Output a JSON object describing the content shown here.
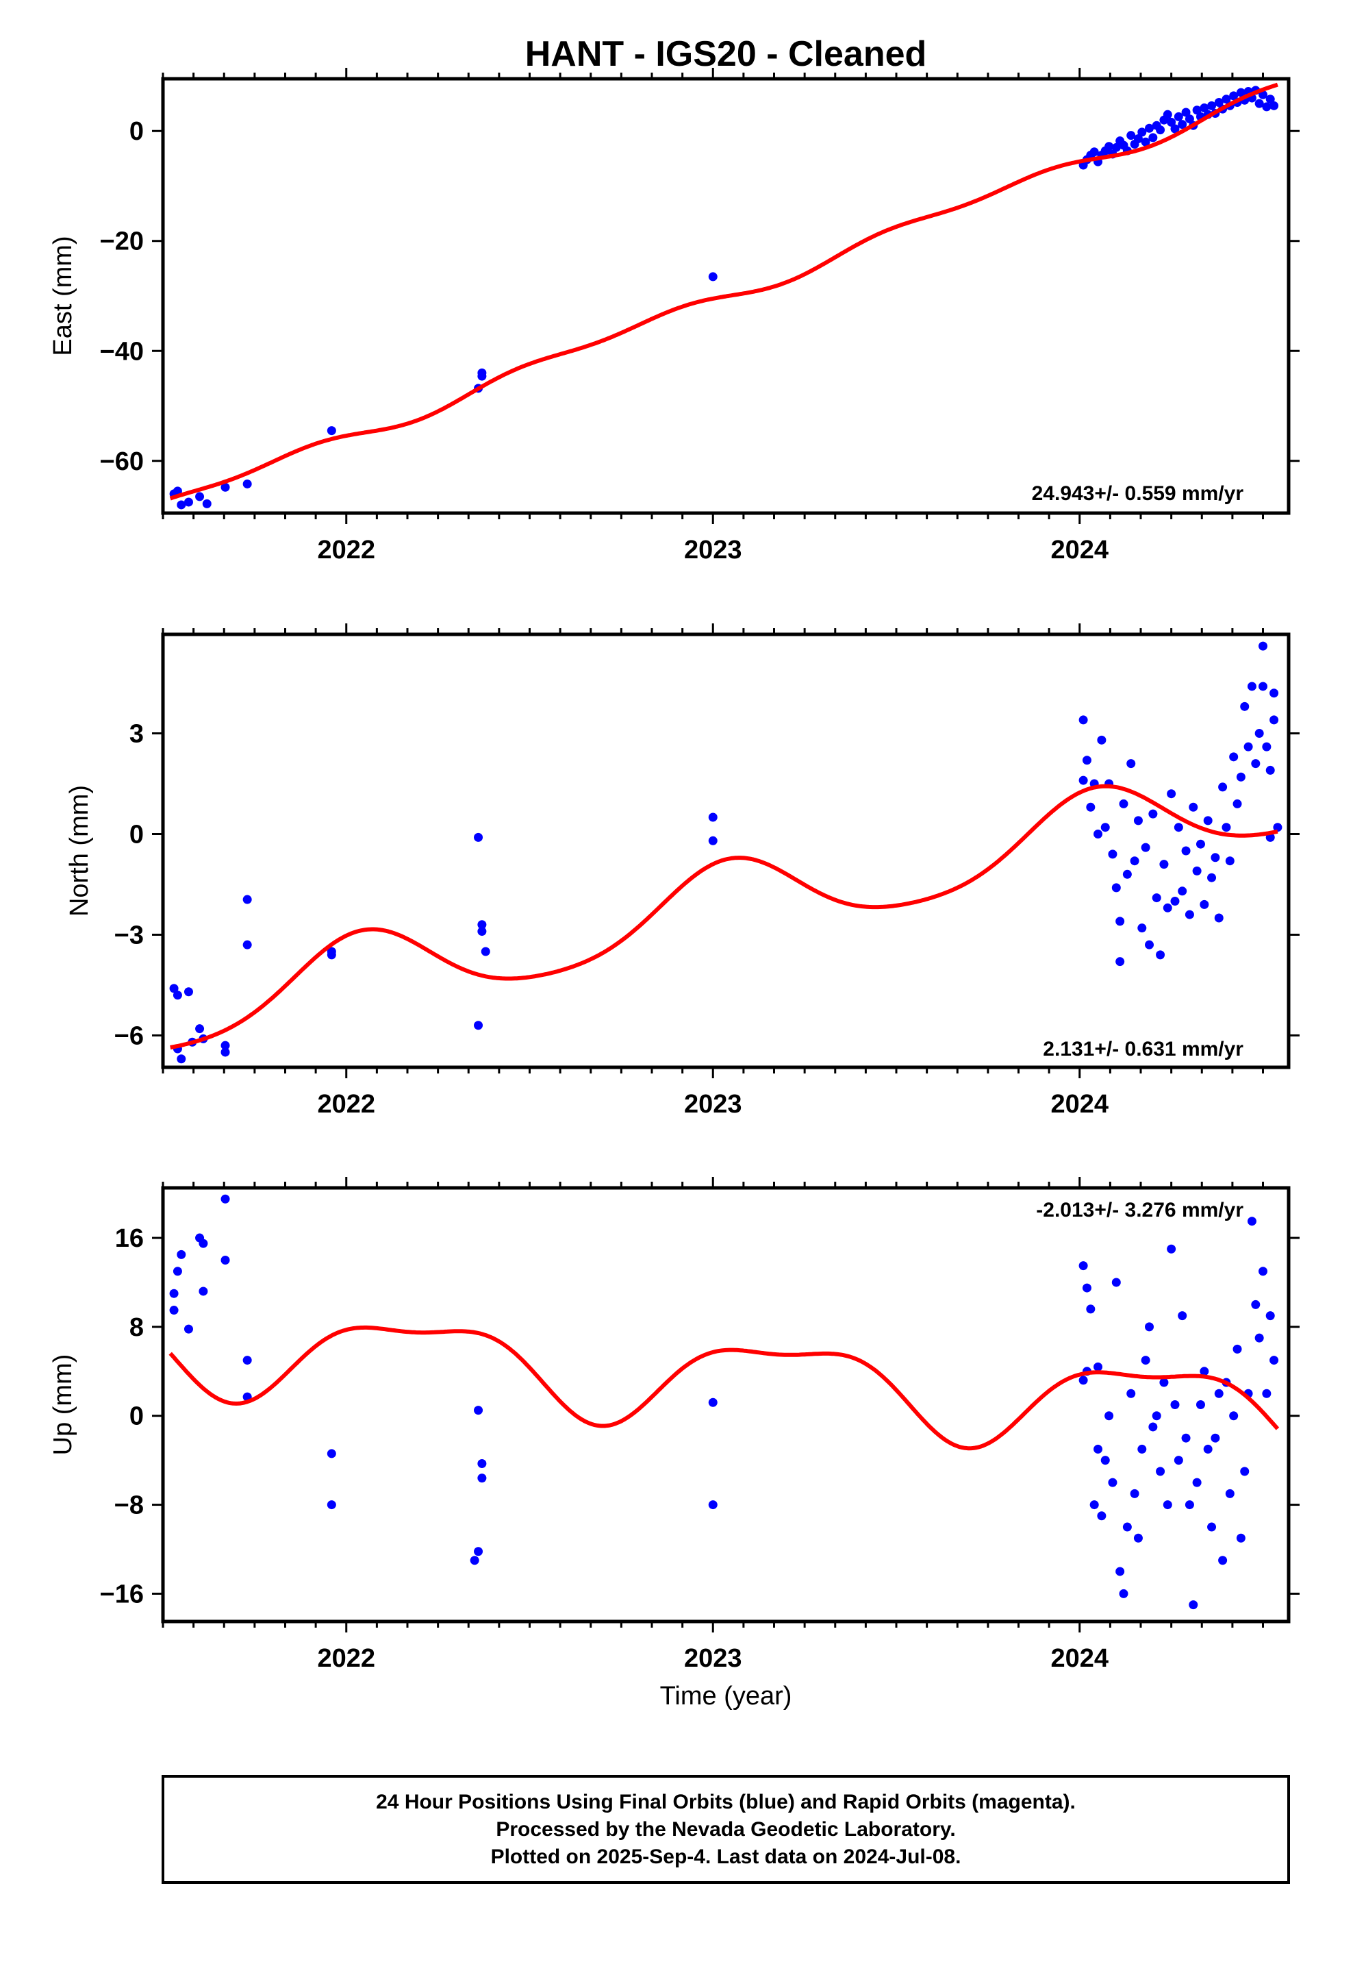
{
  "title": "HANT  - IGS20 - Cleaned",
  "xlabel": "Time (year)",
  "footer": [
    "24 Hour Positions Using Final Orbits (blue) and Rapid Orbits (magenta).",
    "Processed by the Nevada Geodetic Laboratory.",
    "Plotted on 2025-Sep-4. Last data on 2024-Jul-08."
  ],
  "colors": {
    "points": "#0000ff",
    "model": "#ff0000",
    "axes": "#000000"
  },
  "chart_data": [
    {
      "type": "scatter",
      "ylabel": "East (mm)",
      "rate": "24.943+/- 0.559 mm/yr",
      "xlim": [
        2021.5,
        2024.57
      ],
      "ylim": [
        -69.5,
        9.5
      ],
      "yticks": [
        0,
        -20,
        -40,
        -60
      ],
      "xticks": [
        2022,
        2023,
        2024
      ],
      "series": [
        {
          "points": [
            [
              2021.53,
              -66
            ],
            [
              2021.54,
              -65.5
            ],
            [
              2021.55,
              -68
            ],
            [
              2021.57,
              -67.5
            ],
            [
              2021.6,
              -66.5
            ],
            [
              2021.62,
              -67.8
            ],
            [
              2021.67,
              -64.8
            ],
            [
              2021.73,
              -64.2
            ],
            [
              2021.96,
              -54.5
            ],
            [
              2022.36,
              -46.8
            ],
            [
              2022.37,
              -44
            ],
            [
              2022.37,
              -44.6
            ],
            [
              2023.0,
              -26.5
            ],
            [
              2024.01,
              -6.2
            ],
            [
              2024.02,
              -5.2
            ],
            [
              2024.03,
              -4.4
            ],
            [
              2024.04,
              -3.8
            ],
            [
              2024.05,
              -5.6
            ],
            [
              2024.06,
              -4.4
            ],
            [
              2024.07,
              -3.6
            ],
            [
              2024.08,
              -2.8
            ],
            [
              2024.09,
              -4.2
            ],
            [
              2024.1,
              -3.0
            ],
            [
              2024.11,
              -1.8
            ],
            [
              2024.12,
              -2.6
            ],
            [
              2024.13,
              -3.6
            ],
            [
              2024.14,
              -0.8
            ],
            [
              2024.15,
              -2.4
            ],
            [
              2024.16,
              -1.4
            ],
            [
              2024.17,
              -0.2
            ],
            [
              2024.18,
              -2.0
            ],
            [
              2024.19,
              0.5
            ],
            [
              2024.2,
              -1.2
            ],
            [
              2024.21,
              1.0
            ],
            [
              2024.22,
              0.2
            ],
            [
              2024.23,
              2.0
            ],
            [
              2024.24,
              3.0
            ],
            [
              2024.25,
              1.6
            ],
            [
              2024.26,
              0.4
            ],
            [
              2024.27,
              2.6
            ],
            [
              2024.28,
              1.2
            ],
            [
              2024.29,
              3.4
            ],
            [
              2024.3,
              2.2
            ],
            [
              2024.31,
              1.0
            ],
            [
              2024.32,
              3.8
            ],
            [
              2024.33,
              2.6
            ],
            [
              2024.34,
              4.2
            ],
            [
              2024.35,
              3.0
            ],
            [
              2024.36,
              4.6
            ],
            [
              2024.37,
              3.2
            ],
            [
              2024.38,
              5.2
            ],
            [
              2024.39,
              4.0
            ],
            [
              2024.4,
              5.8
            ],
            [
              2024.41,
              4.6
            ],
            [
              2024.42,
              6.4
            ],
            [
              2024.43,
              5.2
            ],
            [
              2024.44,
              7.0
            ],
            [
              2024.45,
              5.6
            ],
            [
              2024.46,
              7.2
            ],
            [
              2024.47,
              6.0
            ],
            [
              2024.48,
              7.4
            ],
            [
              2024.49,
              5.0
            ],
            [
              2024.5,
              6.6
            ],
            [
              2024.51,
              4.4
            ],
            [
              2024.52,
              5.8
            ],
            [
              2024.53,
              4.6
            ]
          ]
        }
      ],
      "model": {
        "t0": 2021.52,
        "offset": -67.7,
        "velocity": 24.943,
        "annual_cos": -0.3,
        "annual_sin": -0.9,
        "semi_cos": 0.6,
        "semi_sin": -0.5,
        "end": 2024.54
      }
    },
    {
      "type": "scatter",
      "ylabel": "North (mm)",
      "rate": "2.131+/- 0.631 mm/yr",
      "xlim": [
        2021.5,
        2024.57
      ],
      "ylim": [
        -6.95,
        5.95
      ],
      "yticks": [
        3,
        0,
        -3,
        -6
      ],
      "xticks": [
        2022,
        2023,
        2024
      ],
      "series": [
        {
          "points": [
            [
              2021.53,
              -4.6
            ],
            [
              2021.54,
              -4.8
            ],
            [
              2021.54,
              -6.4
            ],
            [
              2021.55,
              -6.7
            ],
            [
              2021.57,
              -4.7
            ],
            [
              2021.58,
              -6.2
            ],
            [
              2021.6,
              -5.8
            ],
            [
              2021.61,
              -6.1
            ],
            [
              2021.67,
              -6.3
            ],
            [
              2021.67,
              -6.5
            ],
            [
              2021.73,
              -1.95
            ],
            [
              2021.73,
              -3.3
            ],
            [
              2021.96,
              -3.5
            ],
            [
              2021.96,
              -3.6
            ],
            [
              2022.36,
              -5.7
            ],
            [
              2022.36,
              -0.1
            ],
            [
              2022.37,
              -2.7
            ],
            [
              2022.37,
              -2.9
            ],
            [
              2022.38,
              -3.5
            ],
            [
              2023.0,
              0.5
            ],
            [
              2023.0,
              -0.2
            ],
            [
              2024.01,
              3.4
            ],
            [
              2024.01,
              1.6
            ],
            [
              2024.02,
              2.2
            ],
            [
              2024.03,
              0.8
            ],
            [
              2024.04,
              1.5
            ],
            [
              2024.05,
              0.0
            ],
            [
              2024.06,
              2.8
            ],
            [
              2024.07,
              0.2
            ],
            [
              2024.08,
              1.5
            ],
            [
              2024.09,
              -0.6
            ],
            [
              2024.1,
              -1.6
            ],
            [
              2024.11,
              -2.6
            ],
            [
              2024.11,
              -3.8
            ],
            [
              2024.12,
              0.9
            ],
            [
              2024.13,
              -1.2
            ],
            [
              2024.14,
              2.1
            ],
            [
              2024.15,
              -0.8
            ],
            [
              2024.16,
              0.4
            ],
            [
              2024.17,
              -2.8
            ],
            [
              2024.18,
              -0.4
            ],
            [
              2024.19,
              -3.3
            ],
            [
              2024.2,
              0.6
            ],
            [
              2024.21,
              -1.9
            ],
            [
              2024.22,
              -3.6
            ],
            [
              2024.23,
              -0.9
            ],
            [
              2024.24,
              -2.2
            ],
            [
              2024.25,
              1.2
            ],
            [
              2024.26,
              -2.0
            ],
            [
              2024.27,
              0.2
            ],
            [
              2024.28,
              -1.7
            ],
            [
              2024.29,
              -0.5
            ],
            [
              2024.3,
              -2.4
            ],
            [
              2024.31,
              0.8
            ],
            [
              2024.32,
              -1.1
            ],
            [
              2024.33,
              -0.3
            ],
            [
              2024.34,
              -2.1
            ],
            [
              2024.35,
              0.4
            ],
            [
              2024.36,
              -1.3
            ],
            [
              2024.37,
              -0.7
            ],
            [
              2024.38,
              -2.5
            ],
            [
              2024.39,
              1.4
            ],
            [
              2024.4,
              0.2
            ],
            [
              2024.41,
              -0.8
            ],
            [
              2024.42,
              2.3
            ],
            [
              2024.43,
              0.9
            ],
            [
              2024.44,
              1.7
            ],
            [
              2024.45,
              3.8
            ],
            [
              2024.46,
              2.6
            ],
            [
              2024.47,
              4.4
            ],
            [
              2024.48,
              2.1
            ],
            [
              2024.49,
              3.0
            ],
            [
              2024.5,
              5.6
            ],
            [
              2024.5,
              4.4
            ],
            [
              2024.51,
              2.6
            ],
            [
              2024.52,
              -0.1
            ],
            [
              2024.52,
              1.9
            ],
            [
              2024.53,
              3.4
            ],
            [
              2024.53,
              4.2
            ],
            [
              2024.54,
              0.2
            ]
          ]
        }
      ],
      "model": {
        "t0": 2021.52,
        "offset": -5.35,
        "velocity": 2.131,
        "annual_cos": 1.15,
        "annual_sin": 0.3,
        "semi_cos": 0.15,
        "semi_sin": 0.1,
        "end": 2024.54
      }
    },
    {
      "type": "scatter",
      "ylabel": "Up (mm)",
      "rate": "-2.013+/- 3.276 mm/yr",
      "xlim": [
        2021.5,
        2024.57
      ],
      "ylim": [
        -18.5,
        20.5
      ],
      "yticks": [
        16,
        8,
        0,
        -8,
        -16
      ],
      "xticks": [
        2022,
        2023,
        2024
      ],
      "series": [
        {
          "points": [
            [
              2021.53,
              9.5
            ],
            [
              2021.53,
              11
            ],
            [
              2021.54,
              13
            ],
            [
              2021.55,
              14.5
            ],
            [
              2021.57,
              7.8
            ],
            [
              2021.6,
              16
            ],
            [
              2021.61,
              15.5
            ],
            [
              2021.61,
              11.2
            ],
            [
              2021.67,
              19.5
            ],
            [
              2021.67,
              14
            ],
            [
              2021.73,
              5
            ],
            [
              2021.73,
              1.7
            ],
            [
              2021.96,
              -8
            ],
            [
              2021.96,
              -3.4
            ],
            [
              2022.35,
              -13
            ],
            [
              2022.36,
              -12.2
            ],
            [
              2022.36,
              0.5
            ],
            [
              2022.37,
              -4.3
            ],
            [
              2022.37,
              -5.6
            ],
            [
              2023.0,
              1.2
            ],
            [
              2023.0,
              -8
            ],
            [
              2024.01,
              3.2
            ],
            [
              2024.01,
              13.5
            ],
            [
              2024.02,
              11.5
            ],
            [
              2024.02,
              4
            ],
            [
              2024.03,
              9.6
            ],
            [
              2024.04,
              -8
            ],
            [
              2024.05,
              -3
            ],
            [
              2024.05,
              4.4
            ],
            [
              2024.06,
              -9
            ],
            [
              2024.07,
              -4
            ],
            [
              2024.08,
              0
            ],
            [
              2024.09,
              -6
            ],
            [
              2024.1,
              12
            ],
            [
              2024.11,
              -14
            ],
            [
              2024.12,
              -16
            ],
            [
              2024.13,
              -10
            ],
            [
              2024.14,
              2
            ],
            [
              2024.15,
              -7
            ],
            [
              2024.16,
              -11
            ],
            [
              2024.17,
              -3
            ],
            [
              2024.18,
              5
            ],
            [
              2024.19,
              8
            ],
            [
              2024.2,
              -1
            ],
            [
              2024.21,
              0
            ],
            [
              2024.22,
              -5
            ],
            [
              2024.23,
              3
            ],
            [
              2024.24,
              -8
            ],
            [
              2024.25,
              15
            ],
            [
              2024.26,
              1
            ],
            [
              2024.27,
              -4
            ],
            [
              2024.28,
              9
            ],
            [
              2024.29,
              -2
            ],
            [
              2024.3,
              -8
            ],
            [
              2024.31,
              -17
            ],
            [
              2024.32,
              -6
            ],
            [
              2024.33,
              1
            ],
            [
              2024.34,
              4
            ],
            [
              2024.35,
              -3
            ],
            [
              2024.36,
              -10
            ],
            [
              2024.37,
              -2
            ],
            [
              2024.38,
              2
            ],
            [
              2024.39,
              -13
            ],
            [
              2024.4,
              3
            ],
            [
              2024.41,
              -7
            ],
            [
              2024.42,
              0
            ],
            [
              2024.43,
              6
            ],
            [
              2024.44,
              -11
            ],
            [
              2024.45,
              -5
            ],
            [
              2024.46,
              2
            ],
            [
              2024.47,
              17.5
            ],
            [
              2024.48,
              10
            ],
            [
              2024.49,
              7
            ],
            [
              2024.5,
              13
            ],
            [
              2024.51,
              2
            ],
            [
              2024.52,
              9
            ],
            [
              2024.53,
              5
            ]
          ]
        }
      ],
      "model": {
        "t0": 2021.52,
        "offset": 6.5,
        "velocity": -2.013,
        "annual_cos": 1.2,
        "annual_sin": 3.5,
        "semi_cos": 1.0,
        "semi_sin": -0.9,
        "end": 2024.54
      }
    }
  ]
}
